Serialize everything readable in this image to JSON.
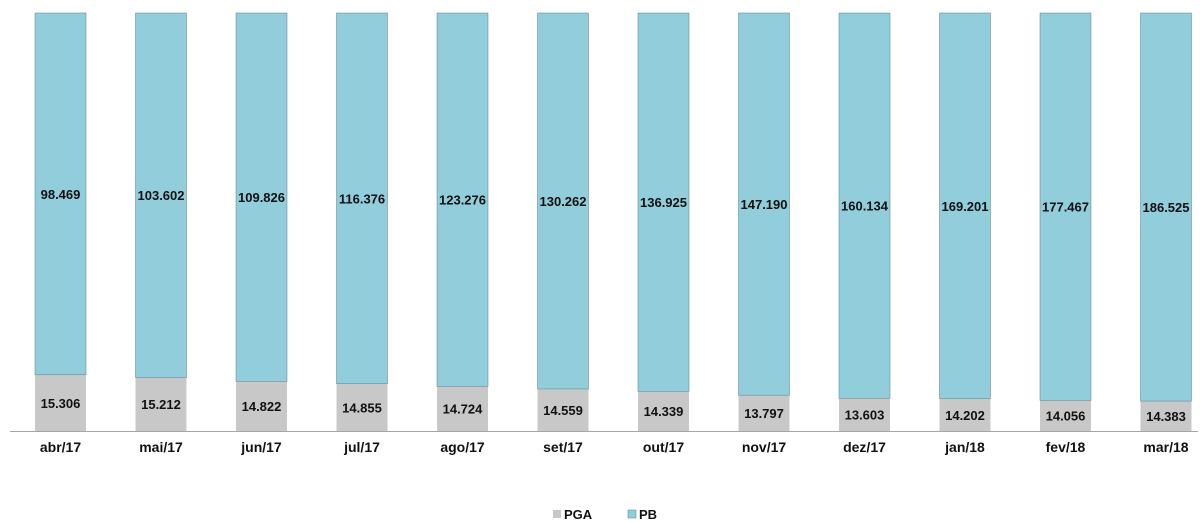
{
  "chart_data": {
    "type": "bar",
    "stacked": true,
    "categories": [
      "abr/17",
      "mai/17",
      "jun/17",
      "jul/17",
      "ago/17",
      "set/17",
      "out/17",
      "nov/17",
      "dez/17",
      "jan/18",
      "fev/18",
      "mar/18"
    ],
    "series": [
      {
        "name": "PGA",
        "color": "#c8c8c8",
        "values": [
          15.306,
          15.212,
          14.822,
          14.855,
          14.724,
          14.559,
          14.339,
          13.797,
          13.603,
          14.202,
          14.056,
          14.383
        ],
        "labels": [
          "15.306",
          "15.212",
          "14.822",
          "14.855",
          "14.724",
          "14.559",
          "14.339",
          "13.797",
          "13.603",
          "14.202",
          "14.056",
          "14.383"
        ]
      },
      {
        "name": "PB",
        "color": "#92cddc",
        "values": [
          98.469,
          103.602,
          109.826,
          116.376,
          123.276,
          130.262,
          136.925,
          147.19,
          160.134,
          169.201,
          177.467,
          186.525
        ],
        "labels": [
          "98.469",
          "103.602",
          "109.826",
          "116.376",
          "123.276",
          "130.262",
          "136.925",
          "147.190",
          "160.134",
          "169.201",
          "177.467",
          "186.525"
        ]
      }
    ],
    "normalized_100_percent": true,
    "legend_position": "bottom",
    "grid": false
  }
}
